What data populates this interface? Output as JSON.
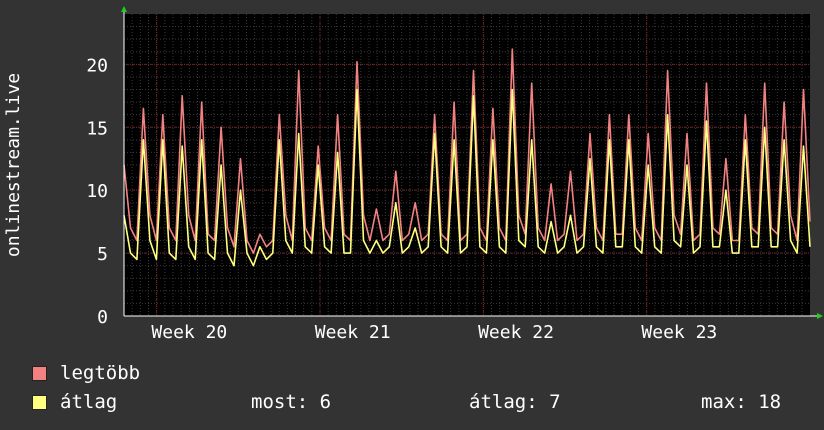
{
  "chart_data": {
    "type": "line",
    "ylabel": "onlinestream.live",
    "ylim": [
      0,
      24
    ],
    "yticks": [
      0,
      5,
      10,
      15,
      20
    ],
    "xlim": [
      0,
      105
    ],
    "xticks": [
      {
        "label": "Week 20",
        "x": 10
      },
      {
        "label": "Week 21",
        "x": 35
      },
      {
        "label": "Week 22",
        "x": 60
      },
      {
        "label": "Week 23",
        "x": 85
      }
    ],
    "grid": true,
    "colors": {
      "background": "#333333",
      "plot": "#000000",
      "grid_minor": "#3a3a3a",
      "grid_major": "#802020",
      "axis": "#ffffff"
    },
    "series": [
      {
        "name": "legtöbb",
        "color": "#f28282",
        "values": [
          12,
          7,
          6,
          16.5,
          8,
          6,
          16,
          7,
          6,
          17.5,
          8,
          6,
          17,
          6.5,
          6,
          15,
          7,
          5.5,
          12.5,
          6,
          5,
          6.5,
          5.5,
          6,
          16,
          8,
          6,
          19.5,
          7,
          6,
          13.5,
          7,
          6,
          16,
          6.5,
          6,
          20.2,
          8,
          6,
          8.5,
          6,
          6.5,
          11.5,
          6,
          6.5,
          9,
          6,
          6.5,
          16,
          6.5,
          6,
          17,
          6,
          6.5,
          19.5,
          7,
          6,
          16.5,
          7,
          6,
          21.2,
          8,
          6.5,
          18.5,
          7,
          6,
          10.5,
          6,
          6.5,
          11.5,
          6,
          6.5,
          14.5,
          7,
          6,
          16,
          6.5,
          6.5,
          16,
          7,
          6,
          14.5,
          7,
          6,
          19.5,
          8,
          6.5,
          14.5,
          6,
          6.5,
          18.5,
          7,
          6.5,
          12.5,
          6,
          6,
          16,
          7,
          6.5,
          18.5,
          7,
          6.5,
          17,
          8,
          6,
          18,
          7.5
        ]
      },
      {
        "name": "átlag",
        "color": "#ffff80",
        "values": [
          8,
          5,
          4.5,
          14,
          6,
          4.5,
          14,
          5,
          4.5,
          13.5,
          5.5,
          4.5,
          14,
          5,
          4.5,
          12,
          5,
          4,
          10,
          5,
          4,
          5.5,
          4.5,
          5,
          14,
          6,
          5,
          14.5,
          5.5,
          5,
          12,
          5.5,
          5,
          13,
          5,
          5,
          18,
          6,
          5,
          6,
          5,
          5.5,
          9,
          5,
          5.5,
          7,
          5,
          5.5,
          14.5,
          5.5,
          5,
          14,
          5,
          5.5,
          17.5,
          5.5,
          5,
          14,
          5.5,
          5,
          18,
          6,
          5.5,
          14,
          5.5,
          5,
          7.5,
          5,
          5.5,
          8,
          5,
          5.5,
          12.5,
          5.5,
          5,
          14,
          5.5,
          5.5,
          14,
          5.5,
          5,
          12,
          5.5,
          5,
          16,
          6,
          5.5,
          12,
          5,
          5.5,
          15.5,
          5.5,
          5.5,
          10,
          5,
          5,
          14,
          5.5,
          5.5,
          15,
          5.5,
          5.5,
          14,
          6,
          5,
          13.5,
          5.5
        ]
      }
    ]
  },
  "legend": {
    "series1_label": "legtöbb",
    "series2_label": "átlag",
    "most": "most: 6",
    "atlag": "átlag: 7",
    "max": "max: 18"
  }
}
